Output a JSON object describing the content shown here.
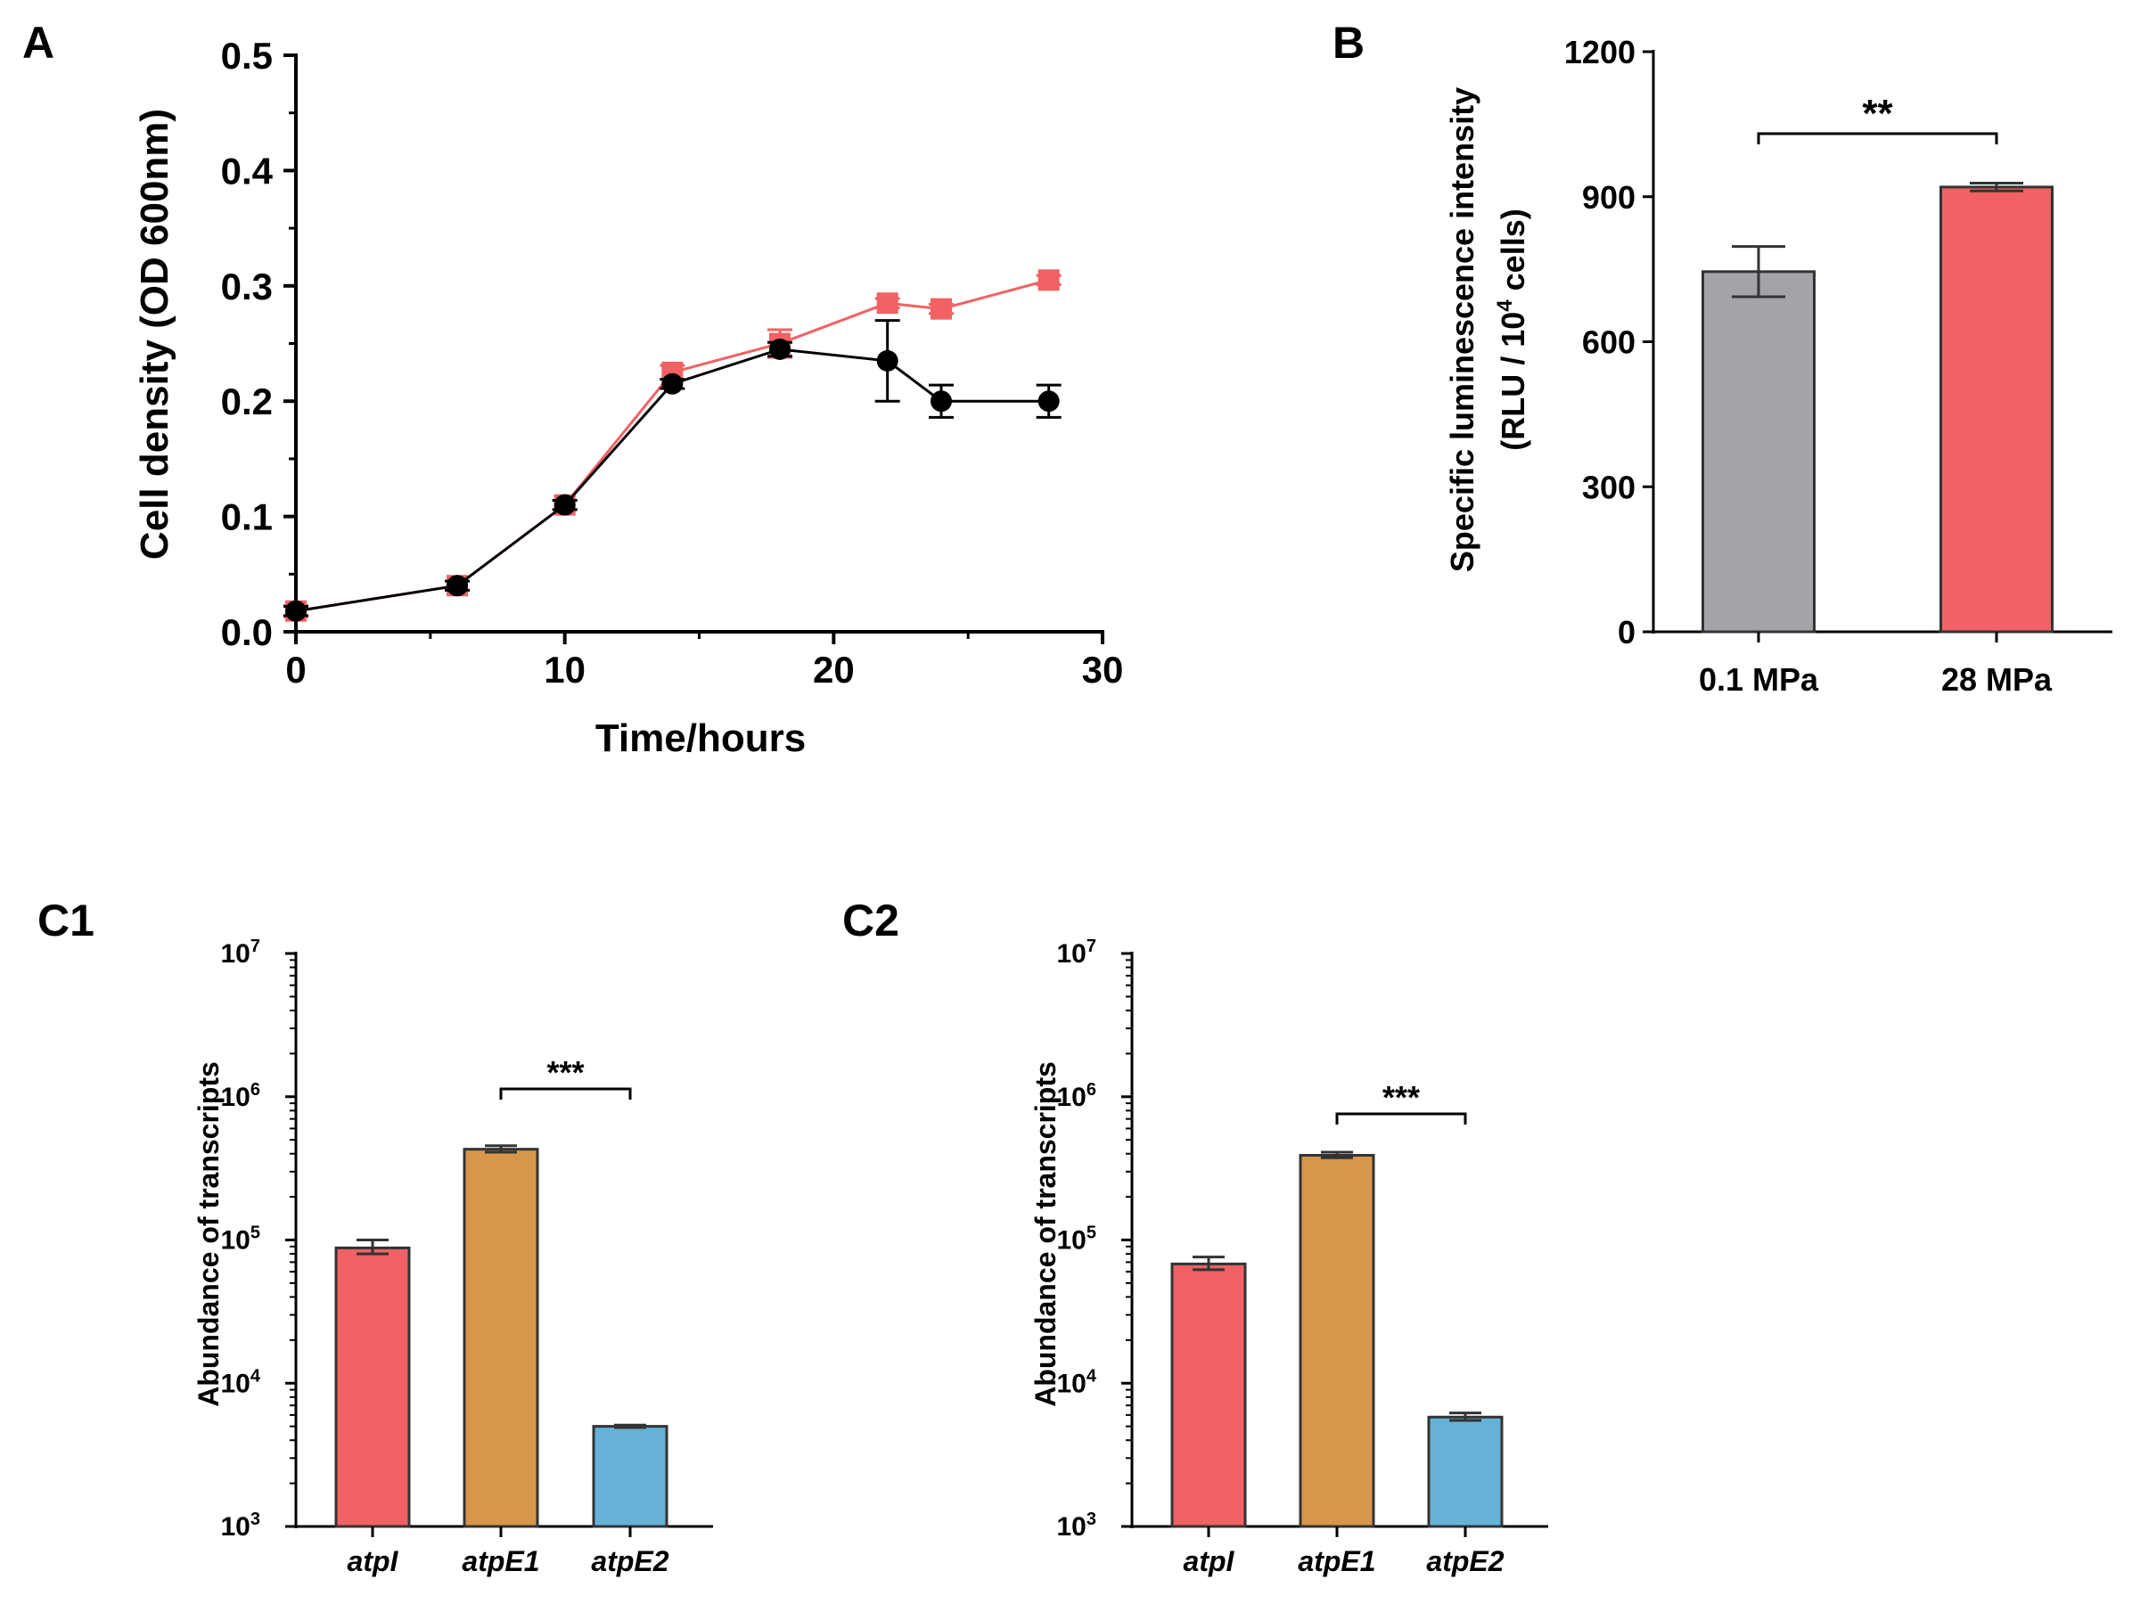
{
  "colors": {
    "red": "#F26163",
    "gray": "#A5A3A8",
    "orange": "#D8964A",
    "blue": "#66B2D6",
    "black": "#000000"
  },
  "chart_data": [
    {
      "id": "A",
      "panel_label": "A",
      "type": "line",
      "xlabel": "Time/hours",
      "ylabel": "Cell density (OD 600nm)",
      "xlim": [
        0,
        30
      ],
      "ylim": [
        0.0,
        0.5
      ],
      "xticks": [
        "0",
        "10",
        "20",
        "30"
      ],
      "yticks": [
        "0.0",
        "0.1",
        "0.2",
        "0.3",
        "0.4",
        "0.5"
      ],
      "series": [
        {
          "name": "red-squares",
          "color": "#F26163",
          "marker": "square",
          "x": [
            0,
            6,
            10,
            14,
            18,
            22,
            24,
            28
          ],
          "y": [
            0.018,
            0.04,
            0.11,
            0.225,
            0.25,
            0.285,
            0.28,
            0.305
          ],
          "err": [
            0.005,
            0.004,
            0.004,
            0.006,
            0.012,
            0.004,
            0.004,
            0.004
          ]
        },
        {
          "name": "black-circles",
          "color": "#000000",
          "marker": "circle",
          "x": [
            0,
            6,
            10,
            14,
            18,
            22,
            24,
            28
          ],
          "y": [
            0.018,
            0.04,
            0.11,
            0.215,
            0.245,
            0.235,
            0.2,
            0.2
          ],
          "err": [
            0.004,
            0.004,
            0.004,
            0.004,
            0.006,
            0.035,
            0.014,
            0.014
          ]
        }
      ]
    },
    {
      "id": "B",
      "panel_label": "B",
      "type": "bar",
      "ylabel_line1": "Specific luminescence intensity",
      "ylabel_line2_prefix": "(RLU / 10",
      "ylabel_line2_sup": "4",
      "ylabel_line2_suffix": " cells)",
      "categories": [
        "0.1 MPa",
        "28 MPa"
      ],
      "values": [
        745,
        920
      ],
      "err": [
        52,
        8
      ],
      "colors": [
        "#A5A3A8",
        "#F26163"
      ],
      "ylim": [
        0,
        1200
      ],
      "yticks": [
        "0",
        "300",
        "600",
        "900",
        "1200"
      ],
      "significance": "**"
    },
    {
      "id": "C1",
      "panel_label": "C1",
      "type": "bar",
      "scale": "log",
      "ylabel": "Abundance of transcripts",
      "categories": [
        "atpI",
        "atpE1",
        "atpE2"
      ],
      "values": [
        88000,
        430000,
        5000
      ],
      "err_low": [
        80000,
        410000,
        4900
      ],
      "err_high": [
        100000,
        455000,
        5100
      ],
      "colors": [
        "#F26163",
        "#D8964A",
        "#66B2D6"
      ],
      "ylim_exp": [
        3,
        7
      ],
      "ytick_base": "10",
      "ytick_exps": [
        "3",
        "4",
        "5",
        "6",
        "7"
      ],
      "significance": "***"
    },
    {
      "id": "C2",
      "panel_label": "C2",
      "type": "bar",
      "scale": "log",
      "ylabel": "Abundance of transcripts",
      "categories": [
        "atpI",
        "atpE1",
        "atpE2"
      ],
      "values": [
        68000,
        390000,
        5800
      ],
      "err_low": [
        62000,
        375000,
        5500
      ],
      "err_high": [
        76000,
        410000,
        6200
      ],
      "colors": [
        "#F26163",
        "#D8964A",
        "#66B2D6"
      ],
      "ylim_exp": [
        3,
        7
      ],
      "ytick_base": "10",
      "ytick_exps": [
        "3",
        "4",
        "5",
        "6",
        "7"
      ],
      "significance": "***"
    }
  ]
}
